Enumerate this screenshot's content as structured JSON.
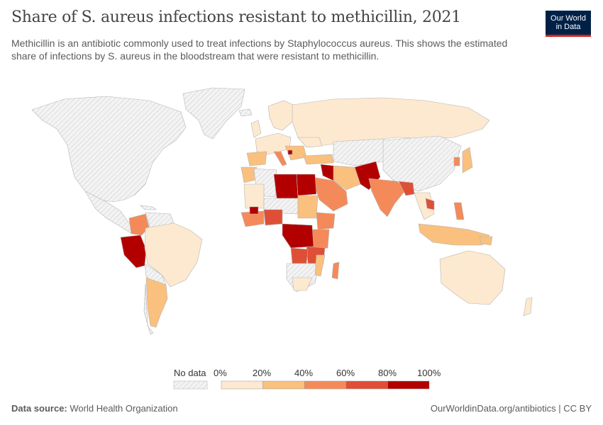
{
  "header": {
    "title": "Share of S. aureus infections resistant to methicillin, 2021",
    "subtitle": "Methicillin is an antibiotic commonly used to treat infections by Staphylococcus aureus. This shows the estimated share of infections by S. aureus in the bloodstream that were resistant to methicillin."
  },
  "logo": {
    "line1": "Our World",
    "line2": "in Data"
  },
  "legend": {
    "no_data": "No data",
    "ticks": [
      "0%",
      "20%",
      "40%",
      "60%",
      "80%",
      "100%"
    ],
    "colors": [
      "#fde9cf",
      "#f9c07e",
      "#f48a59",
      "#df4f36",
      "#b20000"
    ],
    "no_data_pattern": "hatched-grey"
  },
  "footer": {
    "source_label": "Data source:",
    "source_value": "World Health Organization",
    "url_license": "OurWorldinData.org/antibiotics | CC BY"
  },
  "colors": {
    "no_data": "#eeeeee",
    "border": "#bbbbbb"
  }
}
